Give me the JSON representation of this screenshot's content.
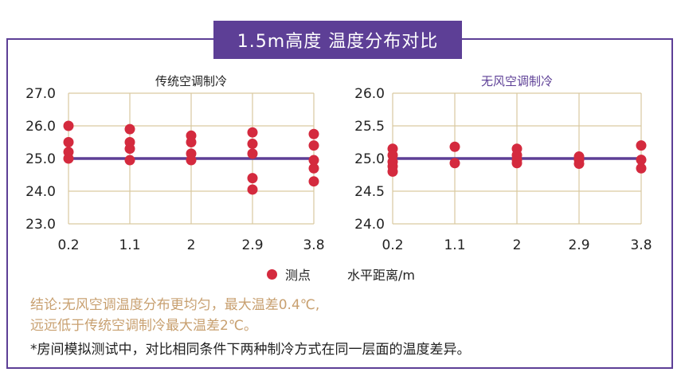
{
  "header": {
    "title": "1.5m高度 温度分布对比"
  },
  "legend": {
    "marker_label": "测点",
    "axis_label": "水平距离/m"
  },
  "notes": {
    "line1": "结论:无风空调温度分布更均匀，最大温差0.4℃,",
    "line2": "远远低于传统空调制冷最大温差2℃。",
    "line3": "*房间模拟测试中，对比相同条件下两种制冷方式在同一层面的温度差异。"
  },
  "colors": {
    "frame": "#5d3f96",
    "point": "#d42a3e",
    "reference_line": "#5d3f96",
    "grid": "#d9c9a0",
    "left_title": "#222222",
    "right_title": "#5d3f96"
  },
  "chart_data": [
    {
      "type": "scatter",
      "title": "传统空调制冷",
      "x_categories": [
        "0.2",
        "1.1",
        "2",
        "2.9",
        "3.8"
      ],
      "ylim": [
        23.0,
        27.0
      ],
      "y_ticks": [
        "23.0",
        "24.0",
        "25.0",
        "26.0",
        "27.0"
      ],
      "reference_line": 25.0,
      "points": [
        {
          "x": "0.2",
          "y": [
            26.0,
            25.5,
            25.2,
            25.0
          ]
        },
        {
          "x": "1.1",
          "y": [
            25.9,
            25.5,
            25.3,
            24.95
          ]
        },
        {
          "x": "2",
          "y": [
            25.7,
            25.5,
            25.15,
            24.95
          ]
        },
        {
          "x": "2.9",
          "y": [
            25.8,
            25.45,
            25.15,
            24.4,
            24.05
          ]
        },
        {
          "x": "3.8",
          "y": [
            25.75,
            25.4,
            24.95,
            24.7,
            24.3
          ]
        }
      ]
    },
    {
      "type": "scatter",
      "title": "无风空调制冷",
      "x_categories": [
        "0.2",
        "1.1",
        "2",
        "2.9",
        "3.8"
      ],
      "ylim": [
        24.0,
        26.0
      ],
      "y_ticks": [
        "24.0",
        "24.5",
        "25.0",
        "25.5",
        "26.0"
      ],
      "reference_line": 25.0,
      "points": [
        {
          "x": "0.2",
          "y": [
            25.15,
            25.05,
            24.95,
            24.88,
            24.8
          ]
        },
        {
          "x": "1.1",
          "y": [
            25.18,
            24.93
          ]
        },
        {
          "x": "2",
          "y": [
            25.15,
            25.05,
            24.98,
            24.93
          ]
        },
        {
          "x": "2.9",
          "y": [
            25.03,
            24.98,
            24.92
          ]
        },
        {
          "x": "3.8",
          "y": [
            25.2,
            24.98,
            24.85
          ]
        }
      ]
    }
  ]
}
